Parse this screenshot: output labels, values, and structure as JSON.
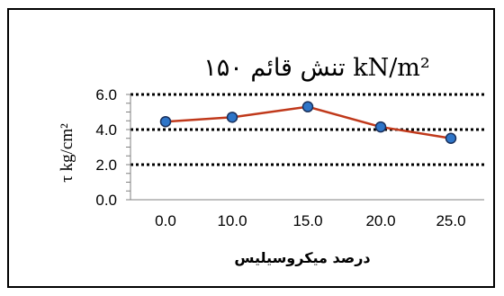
{
  "chart_data": {
    "type": "line",
    "title": "تنش قائم  ۱۵۰ kN/m²",
    "xlabel": "درصد میکروسیلیس",
    "ylabel": "τ  kg/cm²",
    "x": [
      0.0,
      10.0,
      15.0,
      20.0,
      25.0
    ],
    "x_tick_labels": [
      "0.0",
      "10.0",
      "15.0",
      "20.0",
      "25.0"
    ],
    "series": [
      {
        "values": [
          4.45,
          4.7,
          5.3,
          4.15,
          3.5
        ]
      }
    ],
    "y_ticks": [
      0.0,
      2.0,
      4.0,
      6.0
    ],
    "y_tick_labels": [
      "0.0",
      "2.0",
      "4.0",
      "6.0"
    ],
    "ylim": [
      0,
      6
    ],
    "grid": "major horizontal dotted",
    "legend": "none",
    "colors": {
      "line": "#c0391b",
      "marker_fill": "#2e75c8",
      "marker_edge": "#1a2f5a",
      "grid": "#000000"
    }
  }
}
